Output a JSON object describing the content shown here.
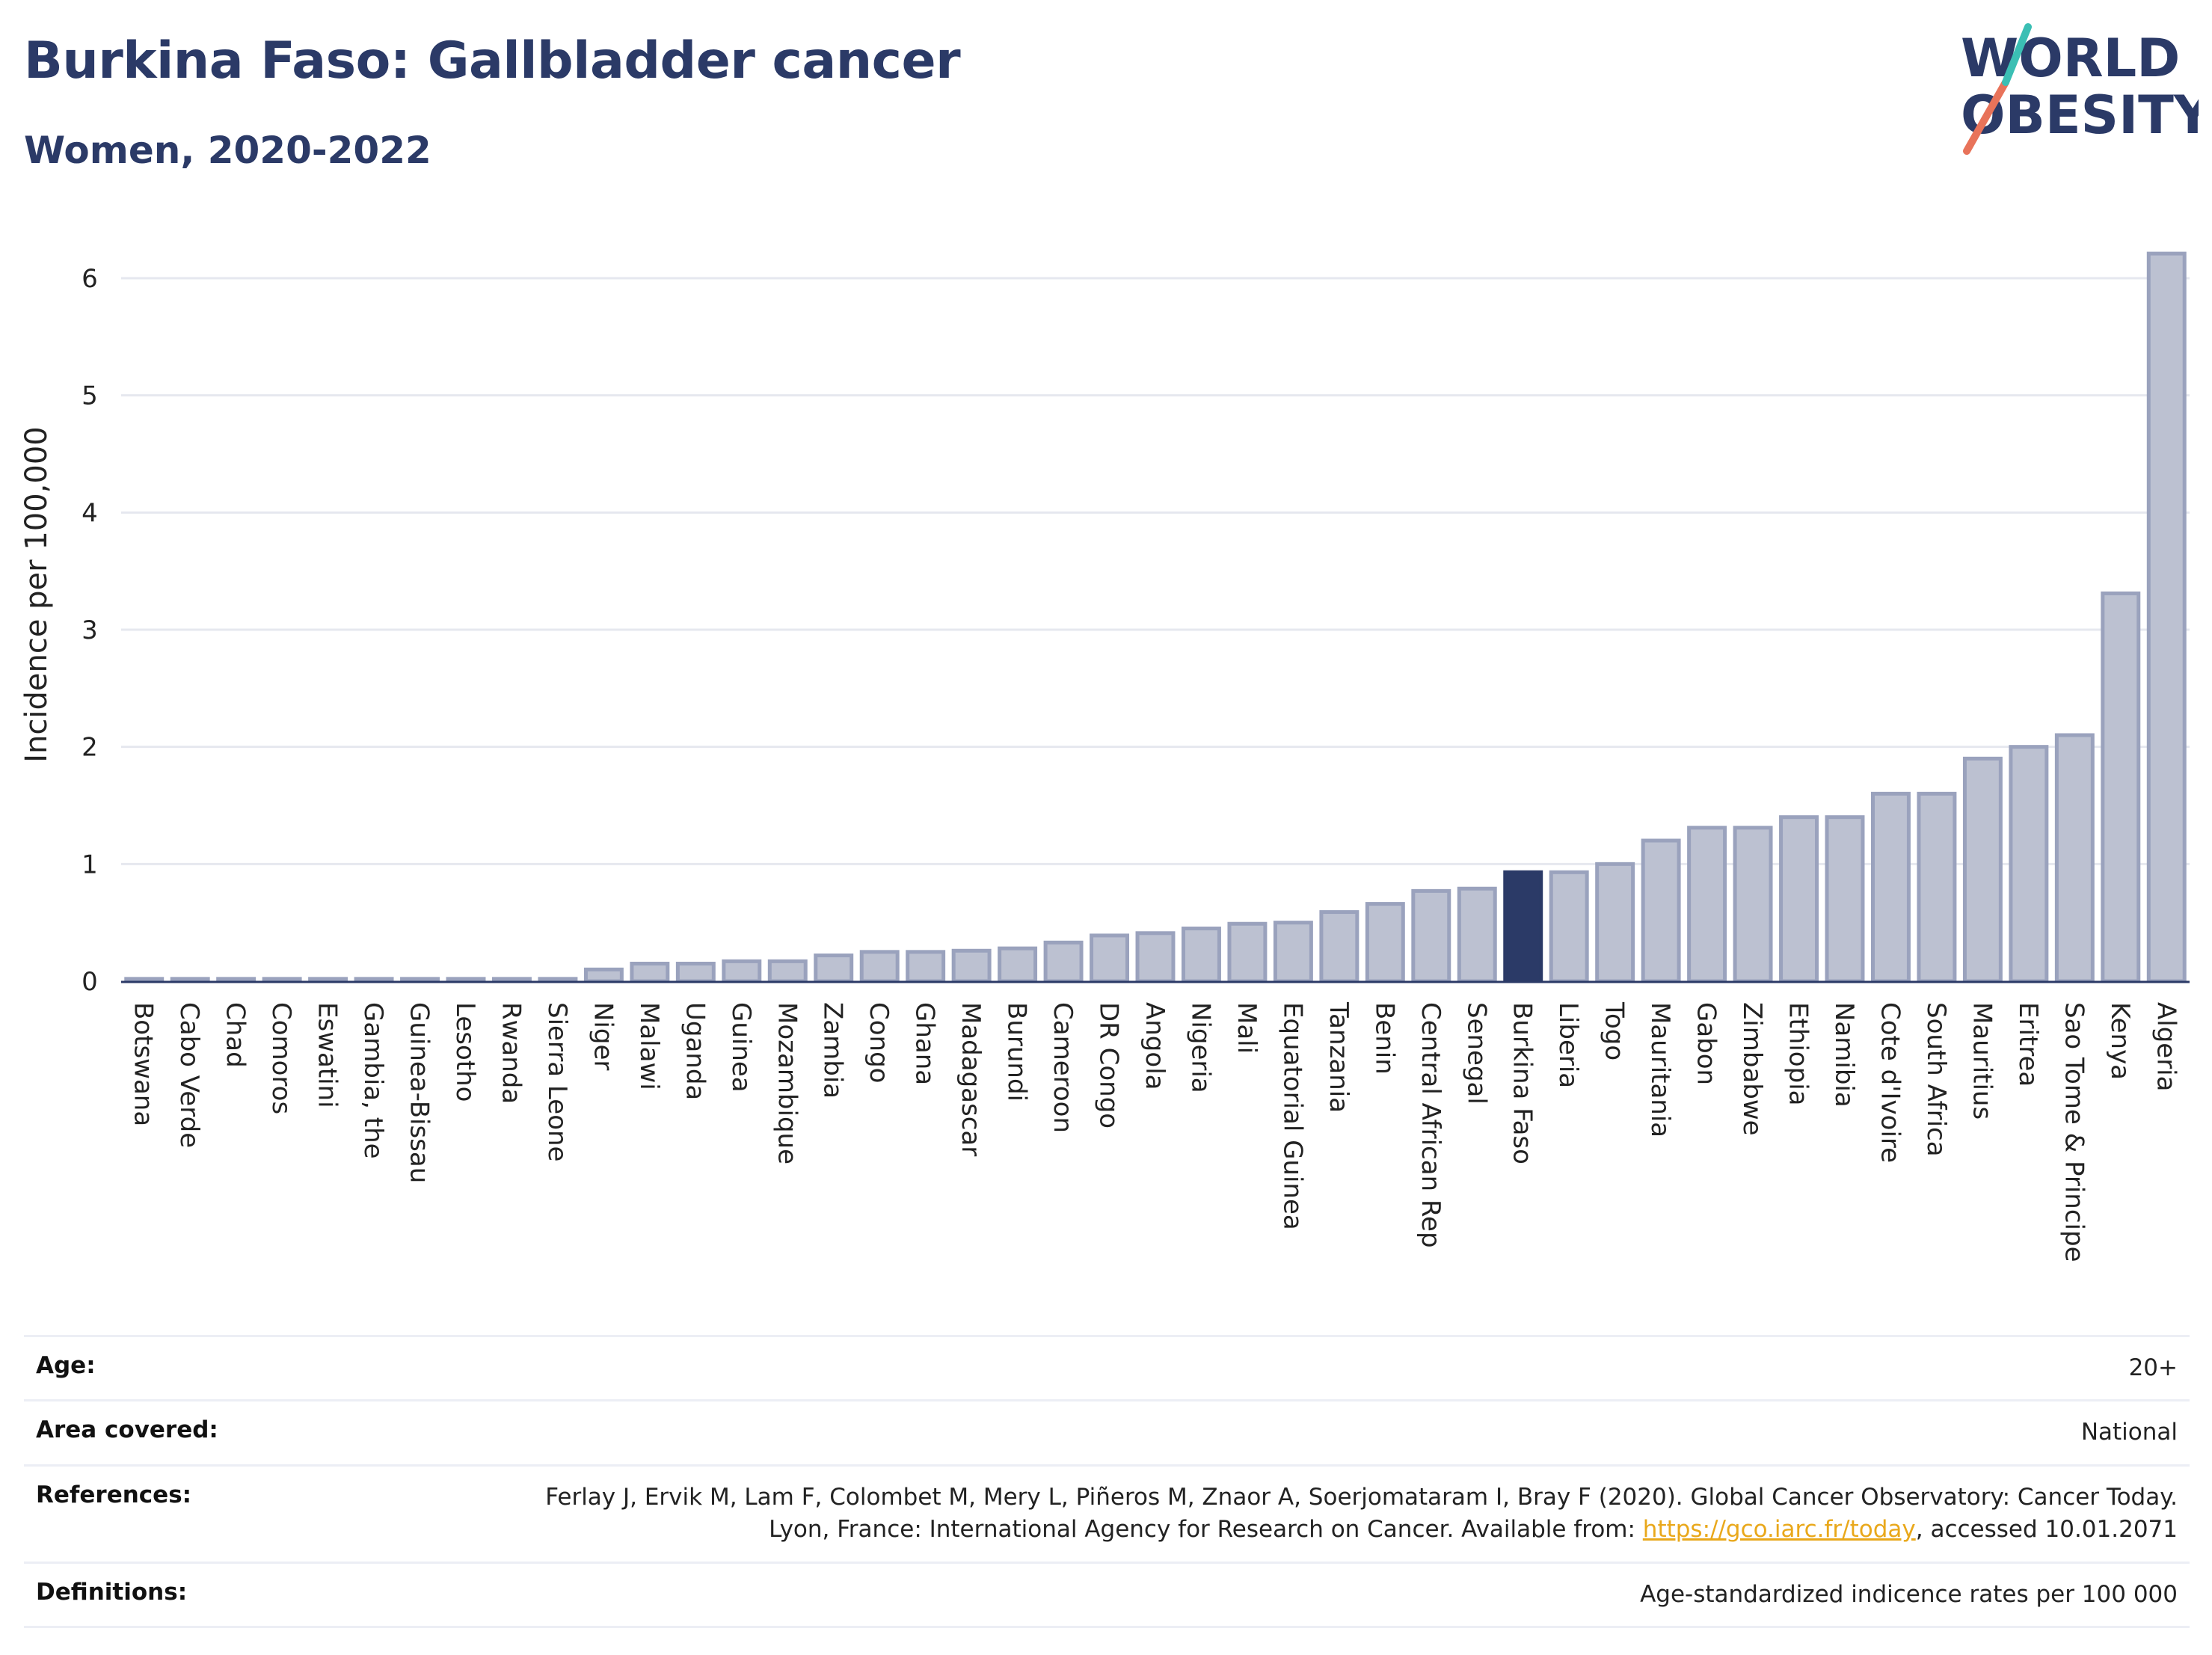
{
  "header": {
    "title": "Burkina Faso: Gallbladder cancer",
    "subtitle": "Women, 2020-2022"
  },
  "logo": {
    "line1": "WORLD",
    "line2": "OBESITY",
    "colors": {
      "text": "#2b3a67",
      "slash_red": "#e8735a",
      "slash_teal": "#3bbfb4"
    }
  },
  "colors": {
    "bar_fill": "#bcc1d1",
    "bar_stroke": "#9aa2bd",
    "highlight_fill": "#2b3a67",
    "grid": "#e6e8ef",
    "axis": "#2b3a67"
  },
  "chart_data": {
    "type": "bar",
    "title": "Burkina Faso: Gallbladder cancer",
    "subtitle": "Women, 2020-2022",
    "xlabel": "",
    "ylabel": "Incidence per 100,000",
    "ylim": [
      0,
      6.3
    ],
    "yticks": [
      0,
      1,
      2,
      3,
      4,
      5,
      6
    ],
    "grid": true,
    "highlight": "Burkina Faso",
    "categories": [
      "Botswana",
      "Cabo Verde",
      "Chad",
      "Comoros",
      "Eswatini",
      "Gambia, the",
      "Guinea-Bissau",
      "Lesotho",
      "Rwanda",
      "Sierra Leone",
      "Niger",
      "Malawi",
      "Uganda",
      "Guinea",
      "Mozambique",
      "Zambia",
      "Congo",
      "Ghana",
      "Madagascar",
      "Burundi",
      "Cameroon",
      "DR Congo",
      "Angola",
      "Nigeria",
      "Mali",
      "Equatorial Guinea",
      "Tanzania",
      "Benin",
      "Central African Rep",
      "Senegal",
      "Burkina Faso",
      "Liberia",
      "Togo",
      "Mauritania",
      "Gabon",
      "Zimbabwe",
      "Ethiopia",
      "Namibia",
      "Cote d'Ivoire",
      "South Africa",
      "Mauritius",
      "Eritrea",
      "Sao Tome & Principe",
      "Kenya",
      "Algeria"
    ],
    "values": [
      0.02,
      0.02,
      0.02,
      0.02,
      0.02,
      0.02,
      0.02,
      0.02,
      0.02,
      0.02,
      0.1,
      0.15,
      0.15,
      0.17,
      0.17,
      0.22,
      0.25,
      0.25,
      0.26,
      0.28,
      0.33,
      0.39,
      0.41,
      0.45,
      0.49,
      0.5,
      0.59,
      0.66,
      0.77,
      0.79,
      0.93,
      0.93,
      1.0,
      1.2,
      1.31,
      1.31,
      1.4,
      1.4,
      1.6,
      1.6,
      1.9,
      2.0,
      2.1,
      3.31,
      6.21
    ]
  },
  "info": {
    "rows": [
      {
        "label": "Age:",
        "value": "20+"
      },
      {
        "label": "Area covered:",
        "value": "National"
      },
      {
        "label": "References:",
        "value_pre": "Ferlay J, Ervik M, Lam F, Colombet M, Mery L, Piñeros M, Znaor A, Soerjomataram I, Bray F (2020). Global Cancer Observatory: Cancer Today. Lyon, France: International Agency for Research on Cancer. Available from: ",
        "link": "https://gco.iarc.fr/today",
        "value_post": ", accessed 10.01.2071"
      },
      {
        "label": "Definitions:",
        "value": "Age-standardized indicence rates per 100 000"
      }
    ]
  }
}
